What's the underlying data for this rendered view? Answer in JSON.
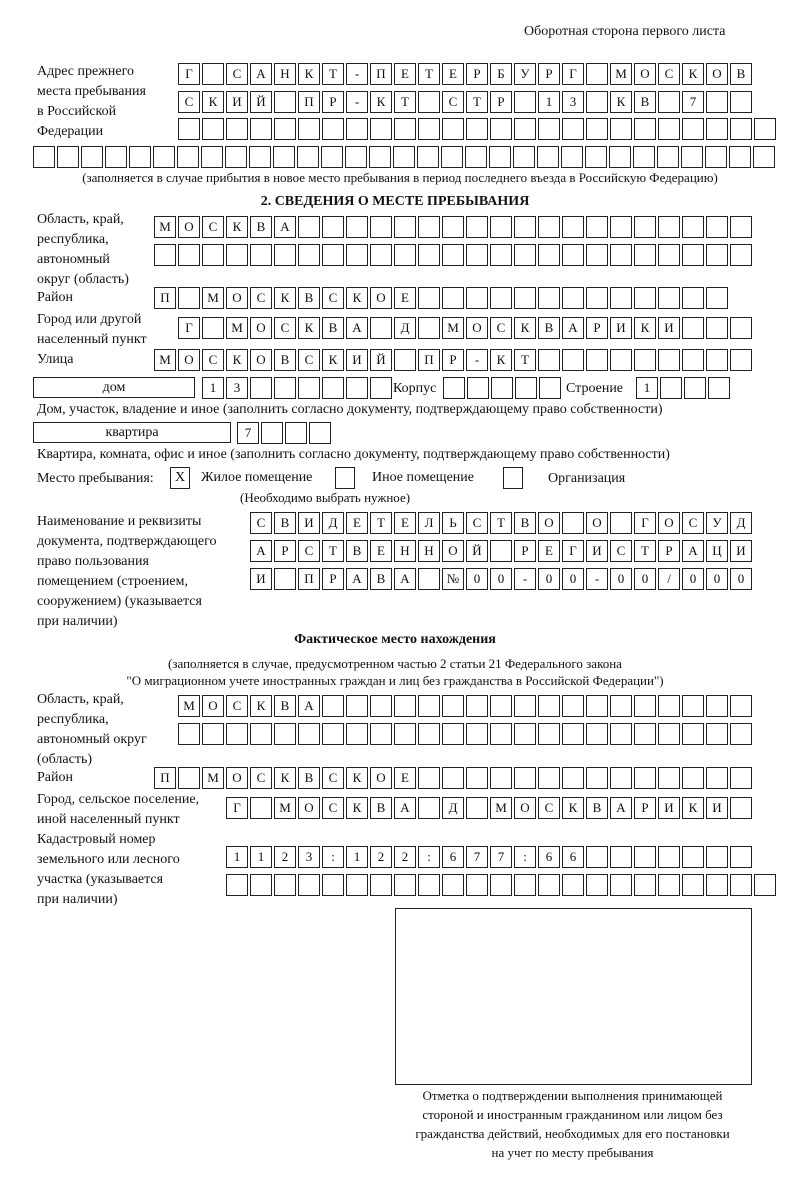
{
  "header": "Оборотная сторона первого листа",
  "prev": {
    "label": [
      "Адрес прежнего",
      "места пребывания",
      "в Российской",
      "Федерации"
    ],
    "rows": [
      [
        "Г",
        " ",
        "С",
        "А",
        "Н",
        "К",
        "Т",
        "-",
        "П",
        "Е",
        "Т",
        "Е",
        "Р",
        "Б",
        "У",
        "Р",
        "Г",
        " ",
        "М",
        "О",
        "С",
        "К",
        "О",
        "В"
      ],
      [
        "С",
        "К",
        "И",
        "Й",
        " ",
        "П",
        "Р",
        "-",
        "К",
        "Т",
        " ",
        "С",
        "Т",
        "Р",
        " ",
        "1",
        "3",
        " ",
        "К",
        "В",
        " ",
        "7",
        " ",
        " "
      ],
      [
        " ",
        " ",
        " ",
        " ",
        " ",
        " ",
        " ",
        " ",
        " ",
        " ",
        " ",
        " ",
        " ",
        " ",
        " ",
        " ",
        " ",
        " ",
        " ",
        " ",
        " ",
        " ",
        " ",
        " ",
        " "
      ],
      [
        " ",
        " ",
        " ",
        " ",
        " ",
        " ",
        " ",
        " ",
        " ",
        " ",
        " ",
        " ",
        " ",
        " ",
        " ",
        " ",
        " ",
        " ",
        " ",
        " ",
        " ",
        " ",
        " ",
        " ",
        " ",
        " ",
        " ",
        " ",
        " ",
        " ",
        " "
      ]
    ],
    "note": "(заполняется в случае прибытия в новое место пребывания в период последнего въезда в Российскую Федерацию)"
  },
  "s2": {
    "title": "2. СВЕДЕНИЯ О МЕСТЕ ПРЕБЫВАНИЯ",
    "region_label": [
      "Область, край,",
      "республика,",
      "автономный",
      "округ (область)"
    ],
    "region_rows": [
      [
        "М",
        "О",
        "С",
        "К",
        "В",
        "А",
        " ",
        " ",
        " ",
        " ",
        " ",
        " ",
        " ",
        " ",
        " ",
        " ",
        " ",
        " ",
        " ",
        " ",
        " ",
        " ",
        " ",
        " ",
        " "
      ],
      [
        " ",
        " ",
        " ",
        " ",
        " ",
        " ",
        " ",
        " ",
        " ",
        " ",
        " ",
        " ",
        " ",
        " ",
        " ",
        " ",
        " ",
        " ",
        " ",
        " ",
        " ",
        " ",
        " ",
        " ",
        " "
      ]
    ],
    "district_label": "Район",
    "district": [
      "П",
      " ",
      "М",
      "О",
      "С",
      "К",
      "В",
      "С",
      "К",
      "О",
      "Е",
      " ",
      " ",
      " ",
      " ",
      " ",
      " ",
      " ",
      " ",
      " ",
      " ",
      " ",
      " ",
      " "
    ],
    "city_label": [
      "Город или другой",
      "населенный пункт"
    ],
    "city": [
      "Г",
      " ",
      "М",
      "О",
      "С",
      "К",
      "В",
      "А",
      " ",
      "Д",
      " ",
      "М",
      "О",
      "С",
      "К",
      "В",
      "А",
      "Р",
      "И",
      "К",
      "И",
      " ",
      " ",
      " "
    ],
    "street_label": "Улица",
    "street": [
      "М",
      "О",
      "С",
      "К",
      "О",
      "В",
      "С",
      "К",
      "И",
      "Й",
      " ",
      "П",
      "Р",
      "-",
      "К",
      "Т",
      " ",
      " ",
      " ",
      " ",
      " ",
      " ",
      " ",
      " ",
      " "
    ],
    "house_type": "дом",
    "house": [
      "1",
      "3",
      " ",
      " ",
      " ",
      " ",
      " ",
      " "
    ],
    "korpus_label": "Корпус",
    "korpus": [
      " ",
      " ",
      " ",
      " ",
      " "
    ],
    "building_label": "Строение",
    "building": [
      "1",
      " ",
      " ",
      " "
    ],
    "house_note": "Дом, участок, владение и иное (заполнить согласно документу, подтверждающему право собственности)",
    "flat_type": "квартира",
    "flat": [
      "7",
      " ",
      " ",
      " "
    ],
    "flat_note": "Квартира, комната, офис и иное (заполнить согласно документу, подтверждающему право собственности)",
    "stay_label": "Место пребывания:",
    "options": [
      {
        "label": "Жилое помещение",
        "mark": "X"
      },
      {
        "label": "Иное помещение",
        "mark": ""
      },
      {
        "label": "Организация",
        "mark": ""
      }
    ],
    "options_note": "(Необходимо выбрать нужное)",
    "doc_label": [
      "Наименование и реквизиты",
      "документа, подтверждающего",
      "право пользования",
      "помещением (строением,",
      "сооружением) (указывается",
      "при наличии)"
    ],
    "doc_rows": [
      [
        "С",
        "В",
        "И",
        "Д",
        "Е",
        "Т",
        "Е",
        "Л",
        "Ь",
        "С",
        "Т",
        "В",
        "О",
        " ",
        "О",
        " ",
        "Г",
        "О",
        "С",
        "У",
        "Д"
      ],
      [
        "А",
        "Р",
        "С",
        "Т",
        "В",
        "Е",
        "Н",
        "Н",
        "О",
        "Й",
        " ",
        "Р",
        "Е",
        "Г",
        "И",
        "С",
        "Т",
        "Р",
        "А",
        "Ц",
        "И"
      ],
      [
        "И",
        " ",
        "П",
        "Р",
        "А",
        "В",
        "А",
        " ",
        "№",
        "0",
        "0",
        "-",
        "0",
        "0",
        "-",
        "0",
        "0",
        "/",
        "0",
        "0",
        "0"
      ]
    ]
  },
  "fact": {
    "title": "Фактическое место нахождения",
    "note": [
      "(заполняется в случае, предусмотренном частью 2 статьи 21 Федерального закона",
      "\"О миграционном учете иностранных граждан и лиц без гражданства в Российской Федерации\")"
    ],
    "region_label": [
      "Область, край,",
      "республика,",
      "автономный округ",
      "(область)"
    ],
    "region_rows": [
      [
        "М",
        "О",
        "С",
        "К",
        "В",
        "А",
        " ",
        " ",
        " ",
        " ",
        " ",
        " ",
        " ",
        " ",
        " ",
        " ",
        " ",
        " ",
        " ",
        " ",
        " ",
        " ",
        " ",
        " "
      ],
      [
        " ",
        " ",
        " ",
        " ",
        " ",
        " ",
        " ",
        " ",
        " ",
        " ",
        " ",
        " ",
        " ",
        " ",
        " ",
        " ",
        " ",
        " ",
        " ",
        " ",
        " ",
        " ",
        " ",
        " "
      ]
    ],
    "district_label": "Район",
    "district": [
      "П",
      " ",
      "М",
      "О",
      "С",
      "К",
      "В",
      "С",
      "К",
      "О",
      "Е",
      " ",
      " ",
      " ",
      " ",
      " ",
      " ",
      " ",
      " ",
      " ",
      " ",
      " ",
      " ",
      " ",
      " "
    ],
    "city_label": [
      "Город, сельское поселение,",
      "иной населенный пункт"
    ],
    "city": [
      "Г",
      " ",
      "М",
      "О",
      "С",
      "К",
      "В",
      "А",
      " ",
      "Д",
      " ",
      "М",
      "О",
      "С",
      "К",
      "В",
      "А",
      "Р",
      "И",
      "К",
      "И",
      " "
    ],
    "cad_label": [
      "Кадастровый номер",
      "земельного или лесного",
      "участка (указывается",
      "при наличии)"
    ],
    "cad_rows": [
      [
        "1",
        "1",
        "2",
        "3",
        ":",
        "1",
        "2",
        "2",
        ":",
        "6",
        "7",
        "7",
        ":",
        "6",
        "6",
        " ",
        " ",
        " ",
        " ",
        " ",
        " ",
        " "
      ],
      [
        " ",
        " ",
        " ",
        " ",
        " ",
        " ",
        " ",
        " ",
        " ",
        " ",
        " ",
        " ",
        " ",
        " ",
        " ",
        " ",
        " ",
        " ",
        " ",
        " ",
        " ",
        " ",
        " "
      ]
    ],
    "stamp_caption": [
      "Отметка о подтверждении выполнения принимающей",
      "стороной и иностранным гражданином или лицом без",
      "гражданства действий, необходимых для его постановки",
      "на учет по месту пребывания"
    ]
  }
}
